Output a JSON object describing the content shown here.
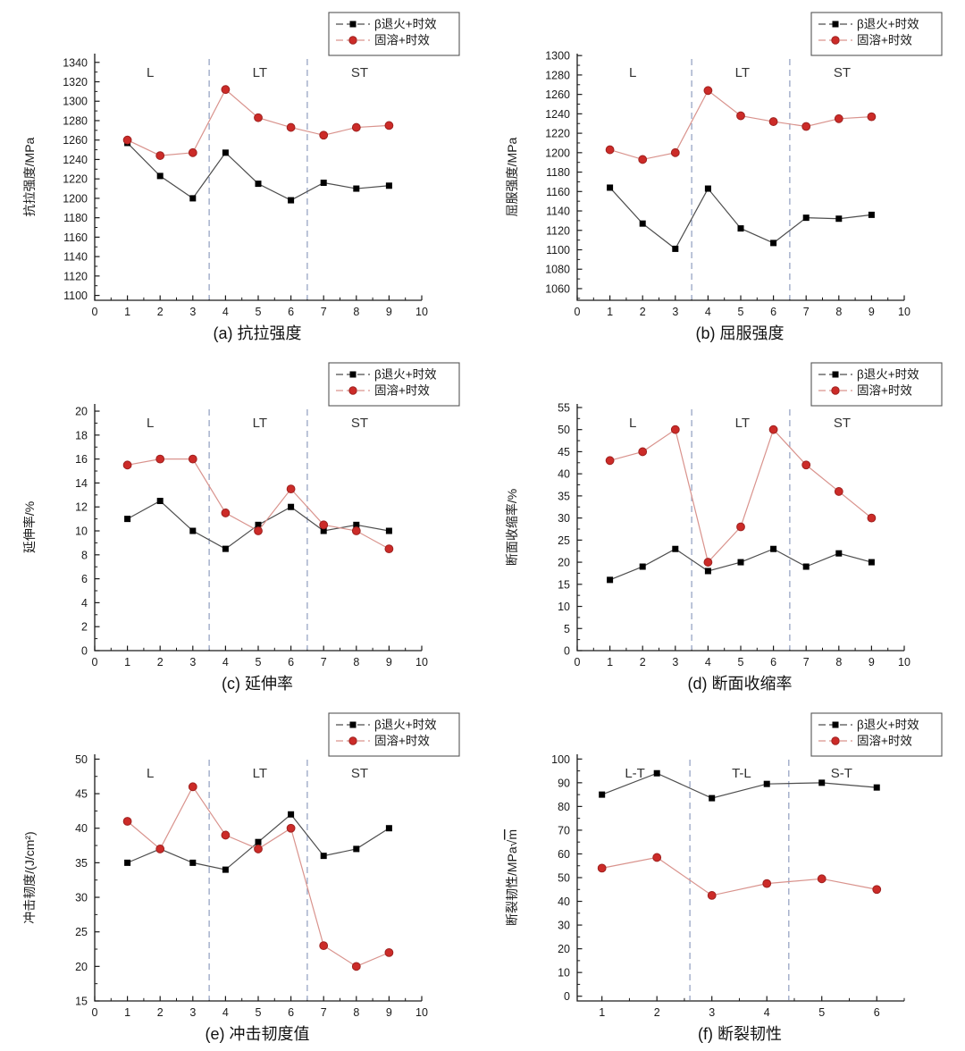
{
  "page": {
    "background": "#ffffff"
  },
  "colors": {
    "black_marker": "#000000",
    "black_line": "#4d4d4d",
    "red_marker": "#cc2b28",
    "red_marker_stroke": "#9e211f",
    "red_line": "#d9938d",
    "divider": "#8f9dbf",
    "axis": "#1a1a1a",
    "legend_border": "#555555"
  },
  "legend": [
    {
      "label": "β退火+时效",
      "marker": "square"
    },
    {
      "label": "固溶+时效",
      "marker": "circle"
    }
  ],
  "chart_data": [
    {
      "type": "line",
      "caption": "(a) 抗拉强度",
      "ylabel": "抗拉强度/MPa",
      "x": [
        1,
        2,
        3,
        4,
        5,
        6,
        7,
        8,
        9
      ],
      "series": [
        {
          "name": "β退火+时效",
          "values": [
            1257,
            1223,
            1200,
            1247,
            1215,
            1198,
            1216,
            1210,
            1213
          ]
        },
        {
          "name": "固溶+时效",
          "values": [
            1260,
            1244,
            1247,
            1312,
            1283,
            1273,
            1265,
            1273,
            1275
          ]
        }
      ],
      "ylim": [
        1095,
        1349
      ],
      "yticks": {
        "start": 1100,
        "step": 20,
        "end": 1340
      },
      "xlim": [
        0,
        10
      ],
      "xticks": [
        0,
        1,
        2,
        3,
        4,
        5,
        6,
        7,
        8,
        9,
        10
      ],
      "dividers": [
        3.5,
        6.5
      ],
      "regions": [
        {
          "label": "L",
          "x": 1.7
        },
        {
          "label": "LT",
          "x": 5.05
        },
        {
          "label": "ST",
          "x": 8.1
        }
      ]
    },
    {
      "type": "line",
      "caption": "(b) 屈服强度",
      "ylabel": "屈服强度/MPa",
      "x": [
        1,
        2,
        3,
        4,
        5,
        6,
        7,
        8,
        9
      ],
      "series": [
        {
          "name": "β退火+时效",
          "values": [
            1164,
            1127,
            1101,
            1163,
            1122,
            1107,
            1133,
            1132,
            1136
          ]
        },
        {
          "name": "固溶+时效",
          "values": [
            1203,
            1193,
            1200,
            1264,
            1238,
            1232,
            1227,
            1235,
            1237
          ]
        }
      ],
      "ylim": [
        1048,
        1302
      ],
      "yticks": {
        "start": 1060,
        "step": 20,
        "end": 1300
      },
      "xlim": [
        0,
        10
      ],
      "xticks": [
        0,
        1,
        2,
        3,
        4,
        5,
        6,
        7,
        8,
        9,
        10
      ],
      "dividers": [
        3.5,
        6.5
      ],
      "regions": [
        {
          "label": "L",
          "x": 1.7
        },
        {
          "label": "LT",
          "x": 5.05
        },
        {
          "label": "ST",
          "x": 8.1
        }
      ]
    },
    {
      "type": "line",
      "caption": "(c) 延伸率",
      "ylabel": "延伸率/%",
      "x": [
        1,
        2,
        3,
        4,
        5,
        6,
        7,
        8,
        9
      ],
      "series": [
        {
          "name": "β退火+时效",
          "values": [
            11,
            12.5,
            10,
            8.5,
            10.5,
            12,
            10,
            10.5,
            10
          ]
        },
        {
          "name": "固溶+时效",
          "values": [
            15.5,
            16,
            16,
            11.5,
            10,
            13.5,
            10.5,
            10,
            8.5
          ]
        }
      ],
      "ylim": [
        0,
        20.6
      ],
      "yticks": {
        "start": 0,
        "step": 2,
        "end": 20
      },
      "xlim": [
        0,
        10
      ],
      "xticks": [
        0,
        1,
        2,
        3,
        4,
        5,
        6,
        7,
        8,
        9,
        10
      ],
      "dividers": [
        3.5,
        6.5
      ],
      "regions": [
        {
          "label": "L",
          "x": 1.7
        },
        {
          "label": "LT",
          "x": 5.05
        },
        {
          "label": "ST",
          "x": 8.1
        }
      ]
    },
    {
      "type": "line",
      "caption": "(d) 断面收缩率",
      "ylabel": "断面收缩率/%",
      "x": [
        1,
        2,
        3,
        4,
        5,
        6,
        7,
        8,
        9
      ],
      "series": [
        {
          "name": "β退火+时效",
          "values": [
            16,
            19,
            23,
            18,
            20,
            23,
            19,
            22,
            20
          ]
        },
        {
          "name": "固溶+时效",
          "values": [
            43,
            45,
            50,
            20,
            28,
            50,
            42,
            36,
            30
          ]
        }
      ],
      "ylim": [
        0,
        55.8
      ],
      "yticks": {
        "start": 0,
        "step": 5,
        "end": 55
      },
      "xlim": [
        0,
        10
      ],
      "xticks": [
        0,
        1,
        2,
        3,
        4,
        5,
        6,
        7,
        8,
        9,
        10
      ],
      "dividers": [
        3.5,
        6.5
      ],
      "regions": [
        {
          "label": "L",
          "x": 1.7
        },
        {
          "label": "LT",
          "x": 5.05
        },
        {
          "label": "ST",
          "x": 8.1
        }
      ]
    },
    {
      "type": "line",
      "caption": "(e) 冲击韧度值",
      "ylabel": "冲击韧度/(J/cm²)",
      "x": [
        1,
        2,
        3,
        4,
        5,
        6,
        7,
        8,
        9
      ],
      "series": [
        {
          "name": "β退火+时效",
          "values": [
            35,
            37,
            35,
            34,
            38,
            42,
            36,
            37,
            40
          ]
        },
        {
          "name": "固溶+时效",
          "values": [
            41,
            37,
            46,
            39,
            37,
            40,
            23,
            20,
            22
          ]
        }
      ],
      "ylim": [
        15,
        50.7
      ],
      "yticks": {
        "start": 15,
        "step": 5,
        "end": 50
      },
      "xlim": [
        0,
        10
      ],
      "xticks": [
        0,
        1,
        2,
        3,
        4,
        5,
        6,
        7,
        8,
        9,
        10
      ],
      "dividers": [
        3.5,
        6.5
      ],
      "regions": [
        {
          "label": "L",
          "x": 1.7
        },
        {
          "label": "LT",
          "x": 5.05
        },
        {
          "label": "ST",
          "x": 8.1
        }
      ]
    },
    {
      "type": "line",
      "caption": "(f) 断裂韧性",
      "ylabel": "断裂韧性/MPa√m",
      "x": [
        1,
        2,
        3,
        4,
        5,
        6
      ],
      "series": [
        {
          "name": "β退火+时效",
          "values": [
            85,
            94,
            83.5,
            89.5,
            90,
            88
          ]
        },
        {
          "name": "固溶+时效",
          "values": [
            54,
            58.5,
            42.5,
            47.5,
            49.5,
            45
          ]
        }
      ],
      "ylim": [
        -2,
        102
      ],
      "yticks": {
        "start": 0,
        "step": 10,
        "end": 100
      },
      "xlim": [
        0.55,
        6.5
      ],
      "xticks": [
        1,
        2,
        3,
        4,
        5,
        6
      ],
      "dividers": [
        2.6,
        4.4
      ],
      "regions": [
        {
          "label": "L-T",
          "x": 1.6
        },
        {
          "label": "T-L",
          "x": 3.54
        },
        {
          "label": "S-T",
          "x": 5.36
        }
      ]
    }
  ]
}
